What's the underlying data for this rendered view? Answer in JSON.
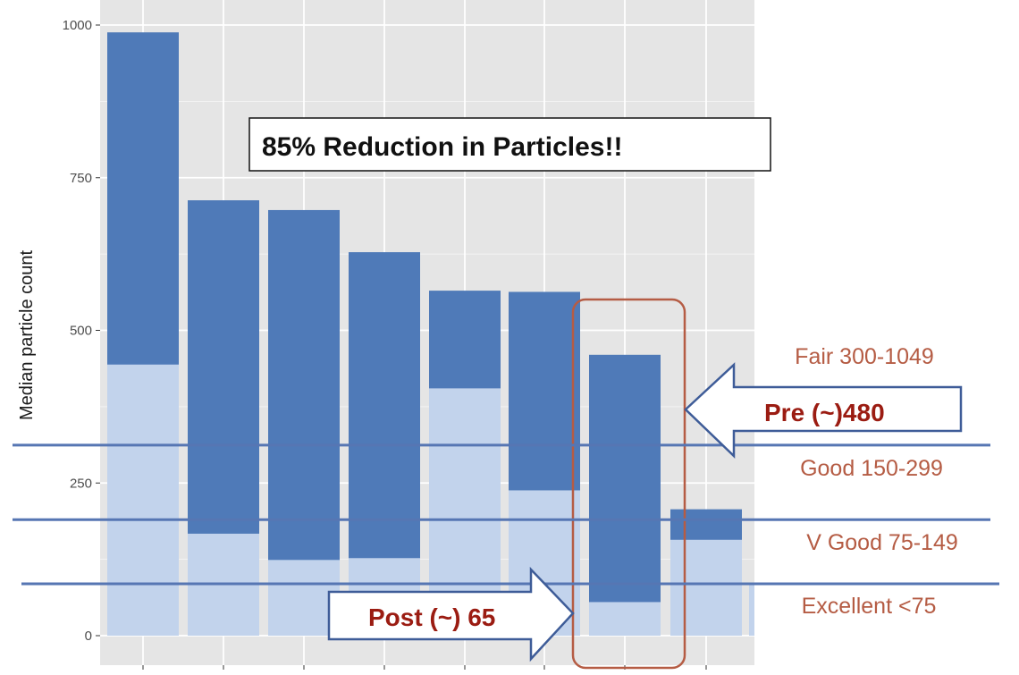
{
  "colors": {
    "panel": "#e5e5e5",
    "grid": "#ffffff",
    "pre": "#4f7ab8",
    "post": "#c2d3ec",
    "band_line": "#5676b3",
    "band_text": "#b55c44",
    "highlight_box": "#b55c44",
    "arrow_text": "#9b1c12",
    "arrow_stroke": "#3e5c98"
  },
  "chart_data": {
    "type": "bar",
    "ylabel": "Median particle count",
    "ylim": [
      0,
      1000
    ],
    "yticks": [
      0,
      250,
      500,
      750,
      1000
    ],
    "grid": true,
    "series": [
      {
        "name": "Pre",
        "values": [
          988,
          713,
          697,
          628,
          565,
          563,
          460,
          207
        ]
      },
      {
        "name": "Post",
        "values": [
          444,
          167,
          124,
          127,
          405,
          238,
          55,
          157
        ]
      }
    ],
    "band_thresholds": [
      312,
      190,
      85
    ],
    "band_labels": [
      "Fair 300-1049",
      "Good 150-299",
      "V Good  75-149",
      "Excellent <75"
    ],
    "highlight_bar_index": 6
  },
  "annotations": {
    "title_box": "85% Reduction in Particles!!",
    "pre_arrow": "Pre (~)480",
    "post_arrow": "Post (~) 65"
  }
}
